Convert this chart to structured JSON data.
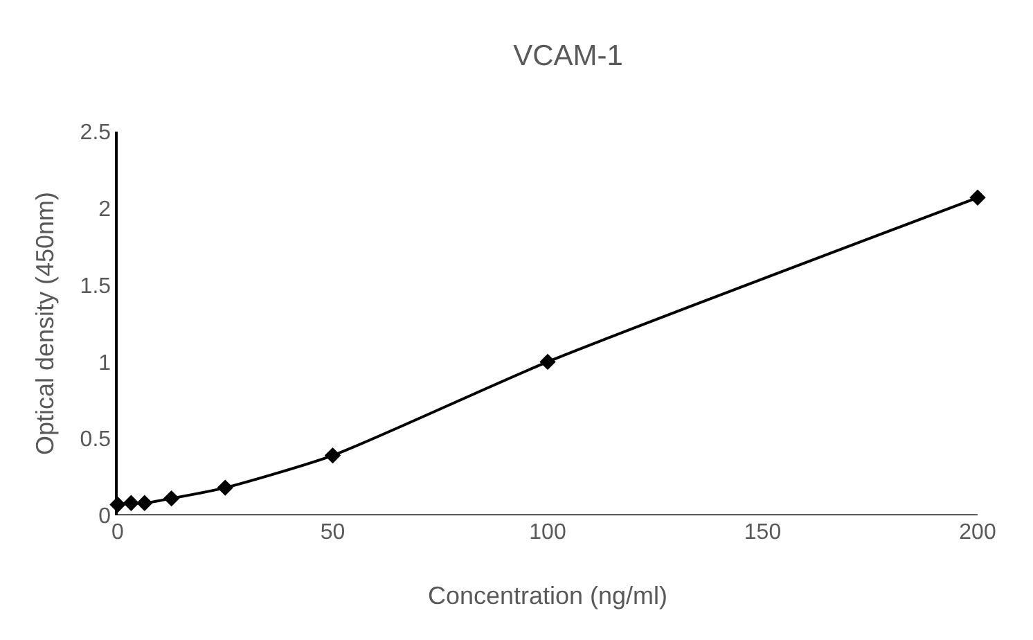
{
  "chart_data": {
    "type": "line",
    "title": "VCAM-1",
    "xlabel": "Concentration (ng/ml)",
    "ylabel": "Optical density (450nm)",
    "x": [
      0,
      3.125,
      6.25,
      12.5,
      25,
      50,
      100,
      200
    ],
    "series": [
      {
        "color": "#000000",
        "values": [
          0.07,
          0.08,
          0.08,
          0.11,
          0.18,
          0.39,
          1.0,
          2.07
        ]
      }
    ],
    "xlim": [
      0,
      200
    ],
    "xticks": [
      0,
      50,
      100,
      150,
      200
    ],
    "ylim": [
      0,
      2.5
    ],
    "yticks": [
      0,
      {
        "value": 0.5,
        "label": "0.5"
      },
      1,
      {
        "value": 1.5,
        "label": "1.5"
      },
      2,
      {
        "value": 2.5,
        "label": "2.5"
      }
    ],
    "grid": false,
    "legend": false,
    "marker": "diamond",
    "line_style": "solid"
  }
}
